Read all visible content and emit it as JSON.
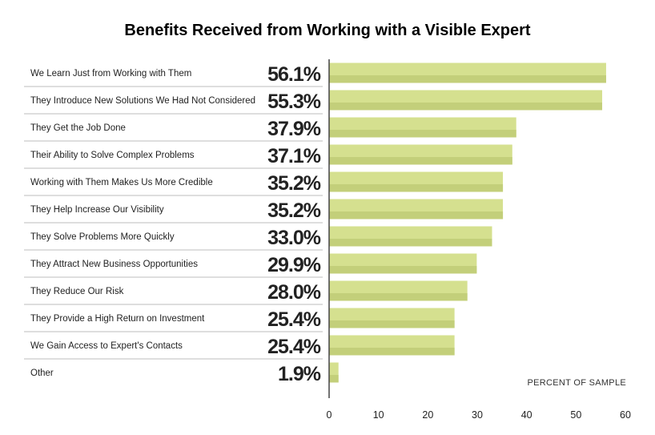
{
  "chart_data": {
    "type": "bar",
    "orientation": "horizontal",
    "title": "Benefits Received from Working with a Visible Expert",
    "xlabel": "PERCENT OF SAMPLE",
    "xlim": [
      0,
      60
    ],
    "xticks": [
      0,
      10,
      20,
      30,
      40,
      50,
      60
    ],
    "grid": false,
    "bar_color": "#d5e08f",
    "bar_shade_color": "#c3cf7a",
    "categories": [
      "We Learn Just from Working with Them",
      "They Introduce New Solutions We Had Not Considered",
      "They Get the Job Done",
      "Their Ability to Solve Complex Problems",
      "Working with Them Makes Us More Credible",
      "They Help Increase Our Visibility",
      "They Solve Problems More Quickly",
      "They Attract New Business Opportunities",
      "They Reduce Our Risk",
      "They Provide a High Return on Investment",
      "We Gain Access to Expert's Contacts",
      "Other"
    ],
    "values": [
      56.1,
      55.3,
      37.9,
      37.1,
      35.2,
      35.2,
      33.0,
      29.9,
      28.0,
      25.4,
      25.4,
      1.9
    ],
    "value_labels": [
      "56.1%",
      "55.3%",
      "37.9%",
      "37.1%",
      "35.2%",
      "35.2%",
      "33.0%",
      "29.9%",
      "28.0%",
      "25.4%",
      "25.4%",
      "1.9%"
    ]
  }
}
